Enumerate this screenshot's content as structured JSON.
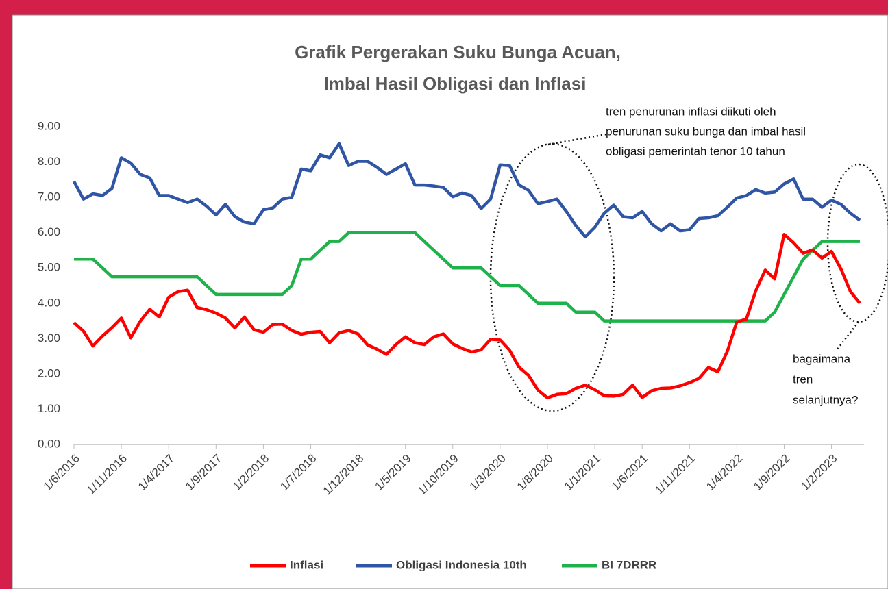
{
  "chart_data": {
    "type": "line",
    "title": [
      "Grafik Pergerakan Suku Bunga Acuan,",
      "Imbal Hasil Obligasi dan Inflasi"
    ],
    "categories": [
      "1/6/2016",
      null,
      null,
      null,
      null,
      "1/11/2016",
      null,
      null,
      null,
      null,
      "1/4/2017",
      null,
      null,
      null,
      null,
      "1/9/2017",
      null,
      null,
      null,
      null,
      "1/2/2018",
      null,
      null,
      null,
      null,
      "1/7/2018",
      null,
      null,
      null,
      null,
      "1/12/2018",
      null,
      null,
      null,
      null,
      "1/5/2019",
      null,
      null,
      null,
      null,
      "1/10/2019",
      null,
      null,
      null,
      null,
      "1/3/2020",
      null,
      null,
      null,
      null,
      "1/8/2020",
      null,
      null,
      null,
      null,
      "1/1/2021",
      null,
      null,
      null,
      null,
      "1/6/2021",
      null,
      null,
      null,
      null,
      "1/11/2021",
      null,
      null,
      null,
      null,
      "1/4/2022",
      null,
      null,
      null,
      null,
      "1/9/2022",
      null,
      null,
      null,
      null,
      "1/2/2023",
      null,
      null,
      null
    ],
    "series": [
      {
        "name": "Inflasi",
        "color": "#ff0000",
        "values": [
          3.45,
          3.21,
          2.79,
          3.07,
          3.31,
          3.58,
          3.02,
          3.49,
          3.83,
          3.61,
          4.17,
          4.33,
          4.37,
          3.88,
          3.82,
          3.72,
          3.58,
          3.3,
          3.61,
          3.25,
          3.18,
          3.4,
          3.41,
          3.23,
          3.12,
          3.18,
          3.2,
          2.88,
          3.16,
          3.23,
          3.13,
          2.82,
          2.7,
          2.55,
          2.83,
          3.05,
          2.88,
          2.83,
          3.05,
          3.13,
          2.85,
          2.72,
          2.62,
          2.68,
          2.98,
          2.96,
          2.67,
          2.19,
          1.96,
          1.54,
          1.32,
          1.42,
          1.44,
          1.59,
          1.68,
          1.55,
          1.38,
          1.37,
          1.42,
          1.68,
          1.33,
          1.52,
          1.59,
          1.6,
          1.66,
          1.75,
          1.87,
          2.18,
          2.06,
          2.64,
          3.47,
          3.55,
          4.35,
          4.94,
          4.69,
          5.95,
          5.71,
          5.42,
          5.51,
          5.28,
          5.47,
          4.97,
          4.33,
          4.0
        ]
      },
      {
        "name": "Obligasi Indonesia 10th",
        "color": "#2f55a4",
        "values": [
          7.45,
          6.95,
          7.1,
          7.05,
          7.25,
          8.12,
          7.97,
          7.65,
          7.55,
          7.05,
          7.05,
          6.95,
          6.85,
          6.95,
          6.75,
          6.5,
          6.8,
          6.45,
          6.3,
          6.25,
          6.65,
          6.7,
          6.95,
          7.0,
          7.8,
          7.75,
          8.2,
          8.12,
          8.52,
          7.9,
          8.02,
          8.02,
          7.85,
          7.65,
          7.8,
          7.95,
          7.35,
          7.35,
          7.32,
          7.28,
          7.02,
          7.12,
          7.05,
          6.68,
          6.95,
          7.92,
          7.9,
          7.35,
          7.2,
          6.82,
          6.88,
          6.95,
          6.6,
          6.2,
          5.88,
          6.15,
          6.55,
          6.78,
          6.45,
          6.42,
          6.6,
          6.25,
          6.05,
          6.25,
          6.05,
          6.08,
          6.4,
          6.42,
          6.48,
          6.72,
          6.98,
          7.05,
          7.22,
          7.12,
          7.15,
          7.38,
          7.52,
          6.95,
          6.95,
          6.72,
          6.92,
          6.8,
          6.55,
          6.35
        ]
      },
      {
        "name": "BI 7DRRR",
        "color": "#1fb24a",
        "values": [
          5.25,
          5.25,
          5.25,
          5.0,
          4.75,
          4.75,
          4.75,
          4.75,
          4.75,
          4.75,
          4.75,
          4.75,
          4.75,
          4.75,
          4.5,
          4.25,
          4.25,
          4.25,
          4.25,
          4.25,
          4.25,
          4.25,
          4.25,
          4.5,
          5.25,
          5.25,
          5.5,
          5.75,
          5.75,
          6.0,
          6.0,
          6.0,
          6.0,
          6.0,
          6.0,
          6.0,
          6.0,
          5.75,
          5.5,
          5.25,
          5.0,
          5.0,
          5.0,
          5.0,
          4.75,
          4.5,
          4.5,
          4.5,
          4.25,
          4.0,
          4.0,
          4.0,
          4.0,
          3.75,
          3.75,
          3.75,
          3.5,
          3.5,
          3.5,
          3.5,
          3.5,
          3.5,
          3.5,
          3.5,
          3.5,
          3.5,
          3.5,
          3.5,
          3.5,
          3.5,
          3.5,
          3.5,
          3.5,
          3.5,
          3.75,
          4.25,
          4.75,
          5.25,
          5.5,
          5.75,
          5.75,
          5.75,
          5.75,
          5.75
        ]
      }
    ],
    "ylim": [
      0,
      9
    ],
    "yticks": [
      {
        "value": 0,
        "label": "0.00"
      },
      {
        "value": 1,
        "label": "1.00"
      },
      {
        "value": 2,
        "label": "2.00"
      },
      {
        "value": 3,
        "label": "3.00"
      },
      {
        "value": 4,
        "label": "4.00"
      },
      {
        "value": 5,
        "label": "5.00"
      },
      {
        "value": 6,
        "label": "6.00"
      },
      {
        "value": 7,
        "label": "7.00"
      },
      {
        "value": 8,
        "label": "8.00"
      },
      {
        "value": 9,
        "label": "9.00"
      }
    ],
    "grid": false,
    "legend": "bottom",
    "annotations": [
      {
        "lines": [
          "tren penurunan inflasi diikuti oleh",
          "penurunan suku bunga dan imbal hasil",
          "obligasi pemerintah tenor 10 tahun"
        ]
      },
      {
        "lines": [
          "bagaimana",
          "tren",
          "selanjutnya?"
        ]
      }
    ]
  }
}
